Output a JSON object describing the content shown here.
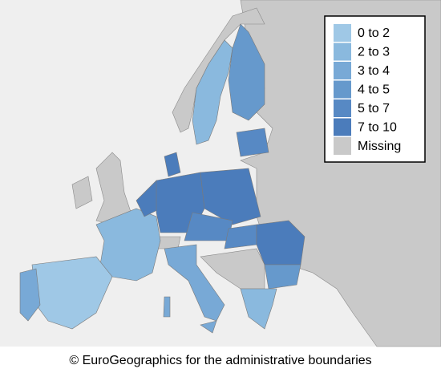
{
  "legend": {
    "items": [
      {
        "label": "0 to 2",
        "color": "#9fc8e6"
      },
      {
        "label": "2 to 3",
        "color": "#8ab9de"
      },
      {
        "label": "3 to 4",
        "color": "#78a9d6"
      },
      {
        "label": "4 to 5",
        "color": "#6699cc"
      },
      {
        "label": "5 to 7",
        "color": "#5789c4"
      },
      {
        "label": "7 to 10",
        "color": "#4b7cbb"
      },
      {
        "label": "Missing",
        "color": "#c9c9c9"
      }
    ]
  },
  "caption": "© EuroGeographics for the administrative boundaries"
}
